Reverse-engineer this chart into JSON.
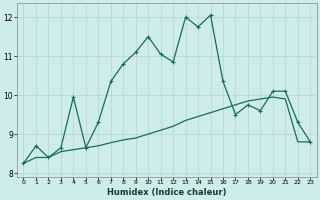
{
  "xlabel": "Humidex (Indice chaleur)",
  "background_color": "#ceecea",
  "grid_color": "#b8d8d4",
  "line_color": "#1a6b5a",
  "xlim": [
    -0.5,
    23.5
  ],
  "ylim": [
    7.9,
    12.35
  ],
  "yticks": [
    8,
    9,
    10,
    11,
    12
  ],
  "xticks": [
    0,
    1,
    2,
    3,
    4,
    5,
    6,
    7,
    8,
    9,
    10,
    11,
    12,
    13,
    14,
    15,
    16,
    17,
    18,
    19,
    20,
    21,
    22,
    23
  ],
  "curve1_x": [
    0,
    1,
    2,
    3,
    4,
    5,
    6,
    7,
    8,
    9,
    10,
    11,
    12,
    13,
    14,
    15,
    16,
    17,
    18,
    19,
    20,
    21,
    22,
    23
  ],
  "curve1_y": [
    8.25,
    8.7,
    8.4,
    8.65,
    9.95,
    8.65,
    9.3,
    10.35,
    10.8,
    11.1,
    11.5,
    11.05,
    10.85,
    12.0,
    11.75,
    12.05,
    10.35,
    9.5,
    9.75,
    9.6,
    10.1,
    10.1,
    9.3,
    8.8
  ],
  "curve2_x": [
    0,
    1,
    2,
    3,
    4,
    5,
    6,
    7,
    8,
    9,
    10,
    11,
    12,
    13,
    14,
    15,
    16,
    17,
    18,
    19,
    20,
    21,
    22,
    23
  ],
  "curve2_y": [
    8.25,
    8.4,
    8.4,
    8.55,
    8.6,
    8.65,
    8.7,
    8.78,
    8.85,
    8.9,
    9.0,
    9.1,
    9.2,
    9.35,
    9.45,
    9.55,
    9.65,
    9.75,
    9.85,
    9.9,
    9.95,
    9.9,
    8.8,
    8.8
  ]
}
